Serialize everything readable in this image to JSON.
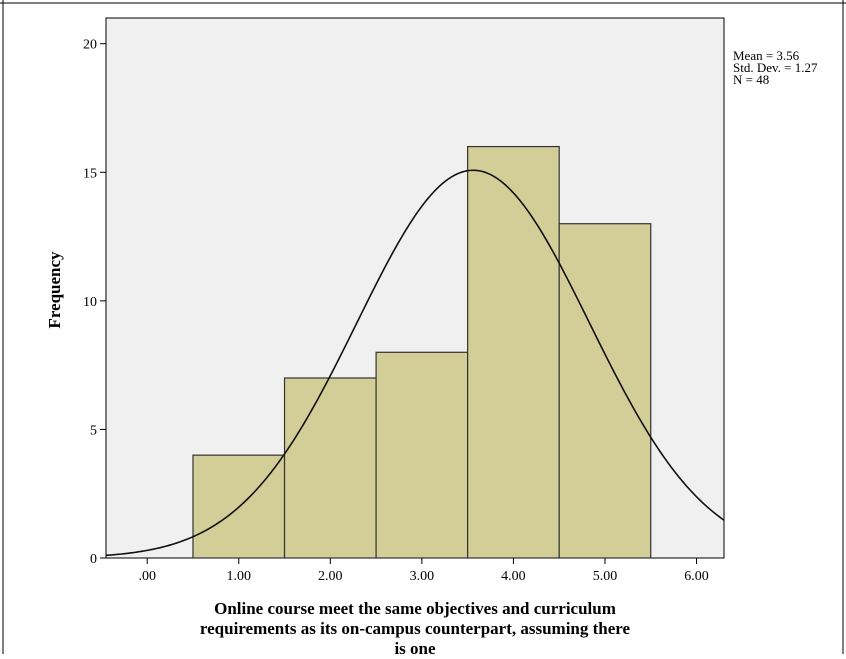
{
  "chart_data": {
    "type": "bar",
    "subtype": "histogram",
    "title": "",
    "xlabel": "Online course meet the same objectives and curriculum requirements as its on-campus counterpart, assuming there is one",
    "xlabel_lines": [
      "Online course meet the same objectives and curriculum",
      "requirements as its on-campus counterpart, assuming there",
      "is one"
    ],
    "ylabel": "Frequency",
    "xlim": [
      -0.45,
      6.3
    ],
    "ylim": [
      0,
      21
    ],
    "x_ticks": [
      0,
      1,
      2,
      3,
      4,
      5,
      6
    ],
    "x_tick_labels": [
      ".00",
      "1.00",
      "2.00",
      "3.00",
      "4.00",
      "5.00",
      "6.00"
    ],
    "y_ticks": [
      0,
      5,
      10,
      15,
      20
    ],
    "y_tick_labels": [
      "0",
      "5",
      "10",
      "15",
      "20"
    ],
    "bin_width": 1,
    "bins": [
      {
        "center": 1,
        "value": 4
      },
      {
        "center": 2,
        "value": 7
      },
      {
        "center": 3,
        "value": 8
      },
      {
        "center": 4,
        "value": 16
      },
      {
        "center": 5,
        "value": 13
      }
    ],
    "normal_curve": {
      "mean": 3.56,
      "std": 1.27,
      "n": 48
    },
    "stats_lines": [
      "Mean = 3.56",
      "Std. Dev. = 1.27",
      "N = 48"
    ],
    "colors": {
      "plot_background": "#f0f0f0",
      "bar_fill": "#d3ce97",
      "bar_stroke": "#333333",
      "curve": "#111111"
    }
  }
}
